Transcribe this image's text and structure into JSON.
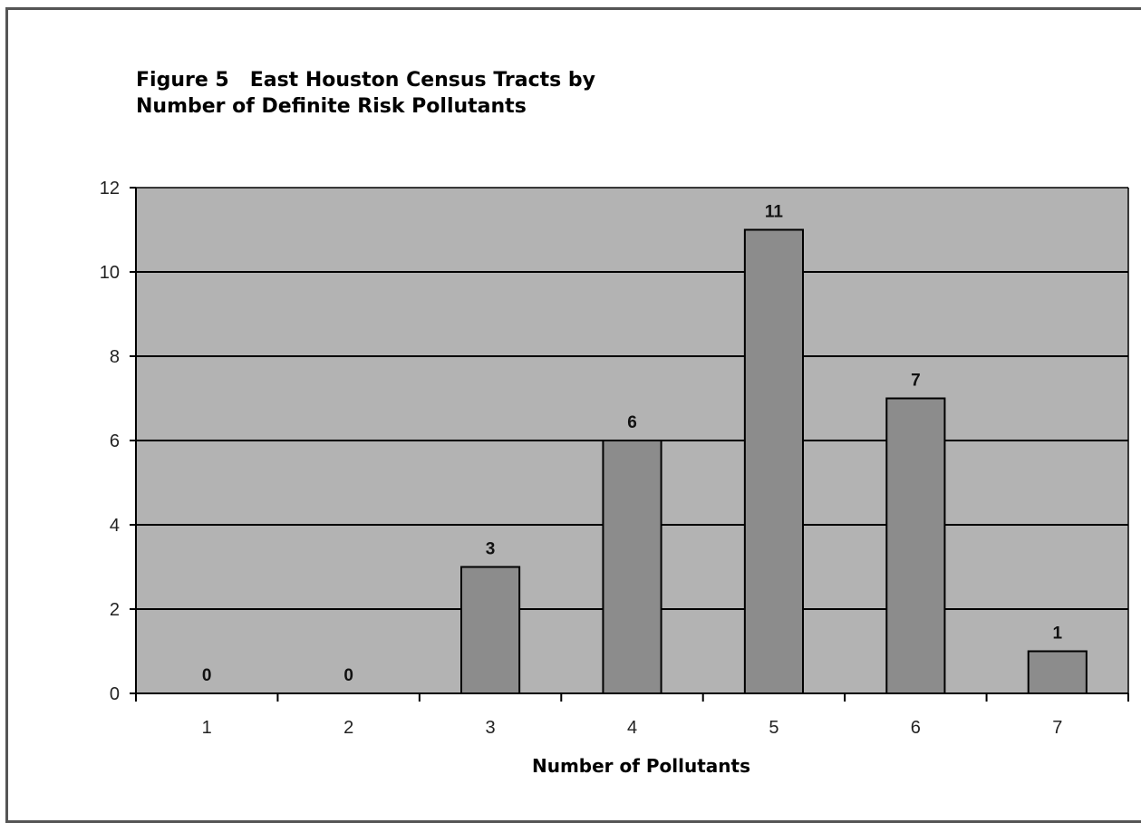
{
  "figure": {
    "title_line1": "Figure 5   East Houston Census Tracts by",
    "title_line2": "Number of Definite Risk Pollutants"
  },
  "chart_data": {
    "type": "bar",
    "categories": [
      "1",
      "2",
      "3",
      "4",
      "5",
      "6",
      "7"
    ],
    "values": [
      0,
      0,
      3,
      6,
      11,
      7,
      1
    ],
    "data_labels": [
      "0",
      "0",
      "3",
      "6",
      "11",
      "7",
      "1"
    ],
    "xlabel": "Number of Pollutants",
    "ylabel": "",
    "ylim": [
      0,
      12
    ],
    "yticks": [
      0,
      2,
      4,
      6,
      8,
      10,
      12
    ],
    "grid": true,
    "legend": "none",
    "colors": {
      "plot_background": "#b3b3b3",
      "bar_fill": "#8c8c8c",
      "bar_stroke": "#000000",
      "gridline": "#000000"
    }
  }
}
